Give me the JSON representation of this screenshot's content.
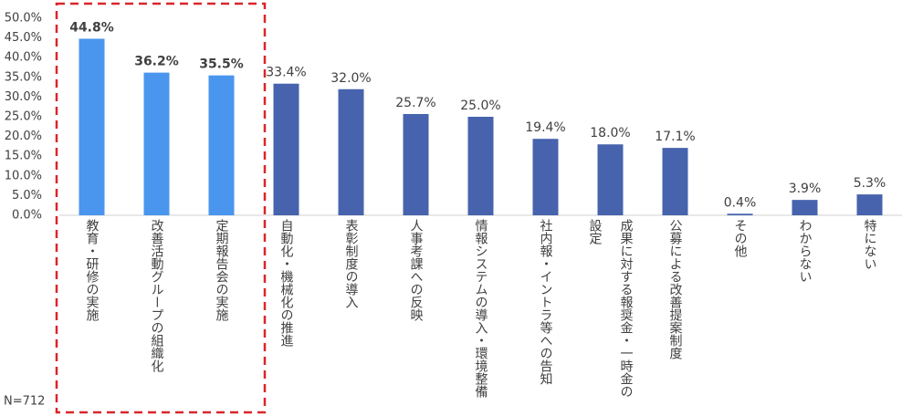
{
  "chart_data": {
    "type": "bar",
    "annotation": "N=712",
    "categories": [
      "教育・研修の実施",
      "改善活動グループの組織化",
      "定期報告会の実施",
      "自動化・機械化の推進",
      "表彰制度の導入",
      "人事考課への反映",
      "情報システムの導入・環境整備",
      "社内報・イントラ等への告知",
      "成果に対する報奨金・一時金の設定",
      "公募による改善提案制度",
      "その他",
      "わからない",
      "特にない"
    ],
    "values": [
      44.8,
      36.2,
      35.5,
      33.4,
      32.0,
      25.7,
      25.0,
      19.4,
      18.0,
      17.1,
      0.4,
      3.9,
      5.3
    ],
    "value_labels": [
      "44.8%",
      "36.2%",
      "35.5%",
      "33.4%",
      "32.0%",
      "25.7%",
      "25.0%",
      "19.4%",
      "18.0%",
      "17.1%",
      "0.4%",
      "3.9%",
      "5.3%"
    ],
    "colors": [
      "#4a96ee",
      "#4a96ee",
      "#4a96ee",
      "#4763ad",
      "#4763ad",
      "#4763ad",
      "#4763ad",
      "#4763ad",
      "#4763ad",
      "#4763ad",
      "#4763ad",
      "#4763ad",
      "#4763ad"
    ],
    "ylim": [
      0,
      50
    ],
    "yticks": [
      {
        "value": 0,
        "label": "0.0%"
      },
      {
        "value": 5,
        "label": "5.0%"
      },
      {
        "value": 10,
        "label": "10.0%"
      },
      {
        "value": 15,
        "label": "15.0%"
      },
      {
        "value": 20,
        "label": "20.0%"
      },
      {
        "value": 25,
        "label": "25.0%"
      },
      {
        "value": 30,
        "label": "30.0%"
      },
      {
        "value": 35,
        "label": "35.0%"
      },
      {
        "value": 40,
        "label": "40.0%"
      },
      {
        "value": 45,
        "label": "45.0%"
      },
      {
        "value": 50,
        "label": "50.0%"
      }
    ]
  }
}
